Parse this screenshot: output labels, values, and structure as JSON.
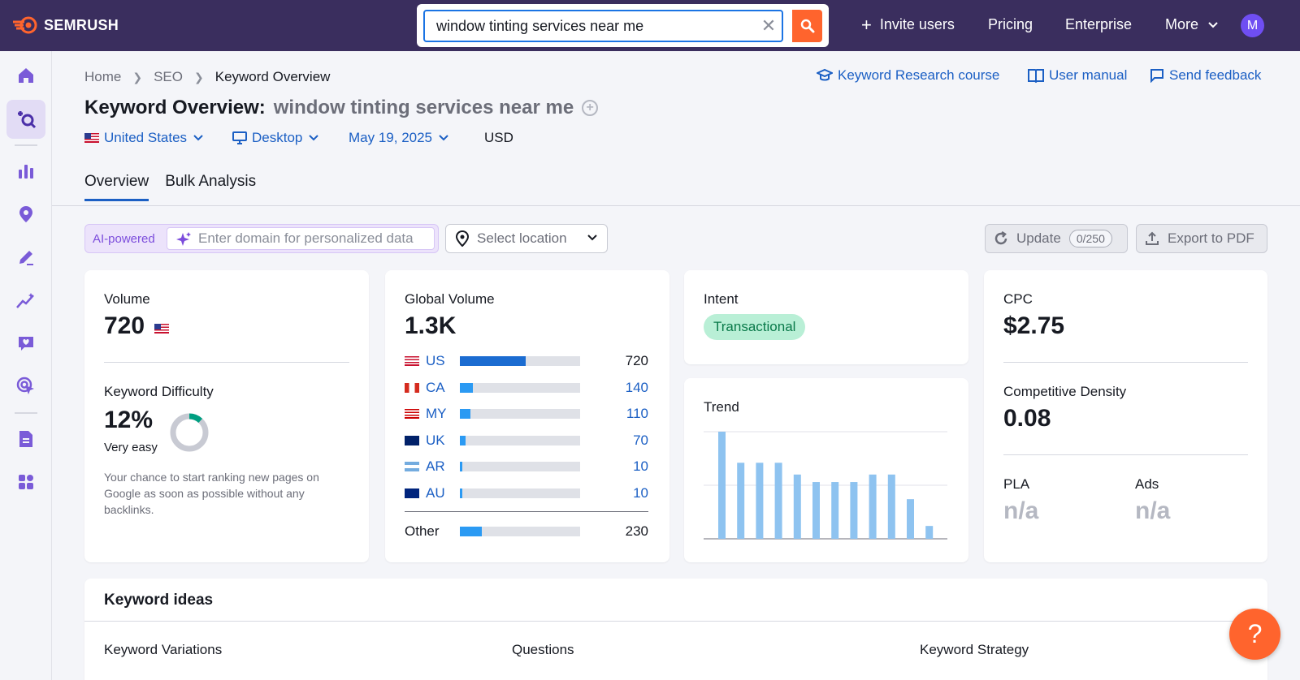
{
  "brand": {
    "name": "SEMRUSH"
  },
  "search": {
    "value": "window tinting services near me"
  },
  "topnav": {
    "invite": "Invite users",
    "pricing": "Pricing",
    "enterprise": "Enterprise",
    "more": "More",
    "avatar_letter": "M"
  },
  "breadcrumb": {
    "home": "Home",
    "seo": "SEO",
    "current": "Keyword Overview"
  },
  "links": {
    "course": "Keyword Research course",
    "manual": "User manual",
    "feedback": "Send feedback"
  },
  "title": {
    "label": "Keyword Overview:",
    "keyword": "window tinting services near me"
  },
  "filters": {
    "country": "United States",
    "device": "Desktop",
    "date": "May 19, 2025",
    "currency": "USD"
  },
  "tabs": [
    "Overview",
    "Bulk Analysis"
  ],
  "toolbar": {
    "ai_label": "AI-powered",
    "domain_placeholder": "Enter domain for personalized data",
    "location_placeholder": "Select location",
    "update": "Update",
    "update_count": "0/250",
    "export": "Export to PDF"
  },
  "volume_card": {
    "label": "Volume",
    "value": "720",
    "kd_label": "Keyword Difficulty",
    "kd_value": "12%",
    "kd_fraction": 0.12,
    "kd_desc": "Very easy",
    "kd_text_1": "Your chance to start ranking new pages on",
    "kd_text_2": "Google as soon as possible without any",
    "kd_text_3": "backlinks."
  },
  "global_card": {
    "label": "Global Volume",
    "value": "1.3K",
    "rows": [
      {
        "code": "US",
        "value": "720",
        "fraction": 0.55
      },
      {
        "code": "CA",
        "value": "140",
        "fraction": 0.11
      },
      {
        "code": "MY",
        "value": "110",
        "fraction": 0.09
      },
      {
        "code": "UK",
        "value": "70",
        "fraction": 0.05
      },
      {
        "code": "AR",
        "value": "10",
        "fraction": 0.02
      },
      {
        "code": "AU",
        "value": "10",
        "fraction": 0.02
      }
    ],
    "other_label": "Other",
    "other_value": "230",
    "other_fraction": 0.18
  },
  "intent_card": {
    "label": "Intent",
    "value": "Transactional"
  },
  "trend_card": {
    "label": "Trend"
  },
  "chart_data": {
    "type": "bar",
    "values": [
      100,
      71,
      71,
      71,
      60,
      53,
      53,
      53,
      60,
      60,
      37,
      12
    ],
    "color": "#8ec3f0",
    "ylim": [
      0,
      100
    ],
    "grid": true
  },
  "cpc_card": {
    "label": "CPC",
    "value": "$2.75",
    "cd_label": "Competitive Density",
    "cd_value": "0.08",
    "pla_label": "PLA",
    "pla_value": "n/a",
    "ads_label": "Ads",
    "ads_value": "n/a"
  },
  "ideas": {
    "title": "Keyword ideas",
    "variations": "Keyword Variations",
    "questions": "Questions",
    "strategy": "Keyword Strategy"
  },
  "help": {
    "label": "?"
  },
  "colors": {
    "topbar": "#3a2e5e",
    "accent": "#ff642d",
    "link": "#1b5fc4",
    "bar": "#2b9af3"
  }
}
